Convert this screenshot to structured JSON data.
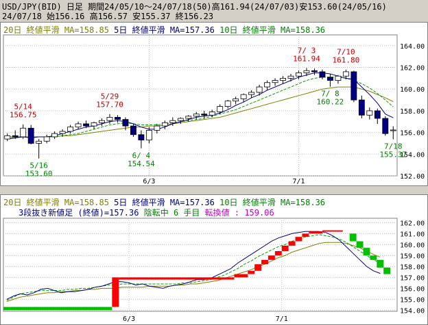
{
  "header": {
    "line1": "USD/JPY(BID) 日足 期間24/05/10～24/07/18(50)高161.94(24/07/03)安153.60(24/05/16)",
    "line2": "24/07/18     始156.16 高156.57 安155.37 終156.23"
  },
  "legend": {
    "ma20": "20日 終値平滑 MA=158.85",
    "ma5": "5日 終値平滑 MA=157.36",
    "ma10": "10日 終値平滑 MA=158.36"
  },
  "renko_info": {
    "label": "3段抜き新値足 (終値)=157.36",
    "status": "陰転中",
    "count": "6 手目",
    "reversal": "転換値 : 159.06"
  },
  "colors": {
    "up": "#ffffff",
    "down": "#000080",
    "ma20": "#808000",
    "ma5": "#000080",
    "ma10": "#00a000",
    "high_label": "#c00000",
    "low_label": "#008000",
    "renko_up": "#ff0000",
    "renko_down": "#00c000"
  },
  "chart_data": [
    {
      "type": "candlestick",
      "x_ticks": [
        "6/3",
        "7/1"
      ],
      "yticks": [
        152,
        154,
        156,
        158,
        160,
        162,
        164
      ],
      "ylim": [
        152,
        165
      ],
      "annotations": [
        {
          "text": [
            "5/14",
            "156.75"
          ],
          "i": 2,
          "price": 156.75,
          "kind": "high"
        },
        {
          "text": [
            "5/16",
            "153.60"
          ],
          "i": 4,
          "price": 153.6,
          "kind": "low"
        },
        {
          "text": [
            "5/29",
            "157.70"
          ],
          "i": 13,
          "price": 157.7,
          "kind": "high"
        },
        {
          "text": [
            "6/ 4",
            "154.54"
          ],
          "i": 17,
          "price": 154.54,
          "kind": "low"
        },
        {
          "text": [
            "7/ 3",
            "161.94"
          ],
          "i": 38,
          "price": 161.94,
          "kind": "high"
        },
        {
          "text": [
            "7/10",
            "161.80"
          ],
          "i": 43,
          "price": 161.8,
          "kind": "high"
        },
        {
          "text": [
            "7/ 8",
            "160.22"
          ],
          "i": 41,
          "price": 160.22,
          "kind": "low"
        },
        {
          "text": [
            "7/18",
            "155.37"
          ],
          "i": 49,
          "price": 155.37,
          "kind": "low"
        }
      ],
      "candles": [
        [
          155.4,
          155.9,
          155.2,
          155.7
        ],
        [
          155.7,
          156.2,
          155.4,
          155.6
        ],
        [
          155.6,
          156.75,
          155.4,
          156.4
        ],
        [
          156.4,
          156.7,
          154.9,
          155.0
        ],
        [
          155.0,
          155.4,
          153.6,
          155.2
        ],
        [
          155.2,
          155.8,
          155.0,
          155.6
        ],
        [
          155.6,
          156.1,
          155.4,
          155.9
        ],
        [
          155.9,
          156.3,
          155.6,
          156.1
        ],
        [
          156.1,
          156.7,
          155.9,
          156.5
        ],
        [
          156.5,
          157.0,
          156.3,
          156.8
        ],
        [
          156.8,
          157.1,
          156.4,
          156.6
        ],
        [
          156.6,
          157.0,
          156.3,
          156.9
        ],
        [
          156.9,
          157.3,
          156.6,
          157.1
        ],
        [
          157.1,
          157.7,
          156.8,
          157.4
        ],
        [
          157.4,
          157.6,
          156.9,
          157.2
        ],
        [
          157.2,
          157.4,
          156.2,
          156.6
        ],
        [
          156.6,
          156.8,
          155.6,
          155.8
        ],
        [
          155.8,
          156.2,
          154.54,
          155.3
        ],
        [
          155.3,
          156.5,
          155.0,
          156.2
        ],
        [
          156.2,
          156.8,
          155.9,
          156.6
        ],
        [
          156.6,
          157.1,
          156.3,
          156.9
        ],
        [
          156.9,
          157.4,
          156.6,
          157.1
        ],
        [
          157.1,
          157.4,
          156.8,
          157.3
        ],
        [
          157.3,
          157.6,
          157.0,
          157.5
        ],
        [
          157.5,
          157.9,
          157.2,
          157.7
        ],
        [
          157.7,
          158.0,
          157.3,
          157.6
        ],
        [
          157.6,
          158.1,
          157.4,
          157.9
        ],
        [
          157.9,
          158.6,
          157.7,
          158.4
        ],
        [
          158.4,
          159.0,
          158.2,
          158.9
        ],
        [
          158.9,
          159.3,
          158.6,
          159.1
        ],
        [
          159.1,
          159.6,
          158.8,
          159.5
        ],
        [
          159.5,
          159.9,
          159.2,
          159.7
        ],
        [
          159.7,
          160.4,
          159.4,
          160.2
        ],
        [
          160.2,
          160.8,
          159.9,
          160.6
        ],
        [
          160.6,
          161.0,
          160.3,
          160.8
        ],
        [
          160.8,
          161.2,
          160.5,
          161.0
        ],
        [
          161.0,
          161.4,
          160.7,
          161.2
        ],
        [
          161.2,
          161.7,
          160.9,
          161.5
        ],
        [
          161.5,
          161.94,
          161.2,
          161.7
        ],
        [
          161.7,
          161.9,
          161.3,
          161.6
        ],
        [
          161.6,
          161.8,
          160.9,
          161.1
        ],
        [
          161.1,
          161.4,
          160.22,
          160.8
        ],
        [
          160.8,
          161.3,
          160.5,
          161.2
        ],
        [
          161.2,
          161.8,
          160.9,
          161.6
        ],
        [
          161.6,
          161.7,
          158.8,
          159.0
        ],
        [
          159.0,
          159.4,
          157.3,
          157.6
        ],
        [
          157.6,
          158.3,
          157.2,
          158.0
        ],
        [
          158.0,
          158.2,
          156.8,
          157.3
        ],
        [
          157.3,
          157.5,
          155.7,
          155.9
        ],
        [
          156.16,
          156.57,
          155.37,
          156.23
        ]
      ],
      "ma5": [
        155.4,
        155.5,
        155.6,
        155.5,
        155.6,
        155.6,
        155.7,
        155.9,
        156.1,
        156.3,
        156.5,
        156.6,
        156.8,
        157.0,
        157.1,
        157.0,
        156.8,
        156.5,
        156.3,
        156.3,
        156.5,
        156.8,
        157.0,
        157.2,
        157.4,
        157.5,
        157.6,
        157.8,
        158.1,
        158.5,
        158.8,
        159.2,
        159.5,
        159.9,
        160.2,
        160.5,
        160.8,
        161.1,
        161.3,
        161.5,
        161.5,
        161.4,
        161.2,
        161.0,
        160.9,
        160.2,
        159.5,
        158.7,
        157.7,
        157.36
      ],
      "ma10": [
        155.5,
        155.5,
        155.6,
        155.6,
        155.6,
        155.6,
        155.6,
        155.7,
        155.8,
        155.9,
        156.1,
        156.3,
        156.5,
        156.7,
        156.8,
        156.9,
        156.8,
        156.7,
        156.7,
        156.7,
        156.8,
        156.9,
        157.0,
        157.1,
        157.2,
        157.3,
        157.5,
        157.7,
        157.9,
        158.1,
        158.4,
        158.7,
        159.0,
        159.3,
        159.6,
        159.9,
        160.2,
        160.5,
        160.8,
        161.0,
        161.1,
        161.1,
        161.1,
        161.0,
        160.8,
        160.5,
        160.1,
        159.6,
        159.0,
        158.36
      ],
      "ma20": [
        155.6,
        155.6,
        155.6,
        155.6,
        155.6,
        155.6,
        155.6,
        155.7,
        155.7,
        155.8,
        155.9,
        156.0,
        156.1,
        156.2,
        156.3,
        156.4,
        156.5,
        156.5,
        156.6,
        156.6,
        156.7,
        156.8,
        156.9,
        157.0,
        157.1,
        157.2,
        157.3,
        157.4,
        157.6,
        157.8,
        158.0,
        158.2,
        158.4,
        158.6,
        158.8,
        159.0,
        159.2,
        159.4,
        159.6,
        159.8,
        160.0,
        160.1,
        160.2,
        160.2,
        160.2,
        160.0,
        159.8,
        159.5,
        159.2,
        158.85
      ]
    },
    {
      "type": "renko",
      "x_ticks": [
        "6/3",
        "7/1"
      ],
      "yticks": [
        154,
        155,
        156,
        157,
        158,
        159,
        160,
        161,
        162
      ],
      "ylim": [
        153.9,
        162.4
      ],
      "bricks": [
        {
          "x0": 0,
          "x1": 16,
          "lo": 154.0,
          "hi": 154.3,
          "up": false
        },
        {
          "x0": 16,
          "x1": 17,
          "lo": 154.3,
          "hi": 157.0,
          "up": true
        },
        {
          "x0": 17,
          "x1": 34,
          "lo": 156.8,
          "hi": 157.0,
          "up": true
        },
        {
          "x0": 34,
          "x1": 36,
          "lo": 157.0,
          "hi": 157.3,
          "up": true
        },
        {
          "x0": 36,
          "x1": 37,
          "lo": 157.3,
          "hi": 157.6,
          "up": true
        },
        {
          "x0": 37,
          "x1": 38,
          "lo": 157.6,
          "hi": 158.2,
          "up": true
        },
        {
          "x0": 38,
          "x1": 39,
          "lo": 158.2,
          "hi": 158.6,
          "up": true
        },
        {
          "x0": 39,
          "x1": 40,
          "lo": 158.6,
          "hi": 159.0,
          "up": true
        },
        {
          "x0": 40,
          "x1": 41,
          "lo": 159.0,
          "hi": 159.4,
          "up": true
        },
        {
          "x0": 41,
          "x1": 42,
          "lo": 159.4,
          "hi": 159.9,
          "up": true
        },
        {
          "x0": 42,
          "x1": 43,
          "lo": 159.9,
          "hi": 160.3,
          "up": true
        },
        {
          "x0": 43,
          "x1": 44,
          "lo": 160.3,
          "hi": 160.7,
          "up": true
        },
        {
          "x0": 44,
          "x1": 45,
          "lo": 160.7,
          "hi": 161.0,
          "up": true
        },
        {
          "x0": 45,
          "x1": 47,
          "lo": 161.0,
          "hi": 161.2,
          "up": true
        },
        {
          "x0": 47,
          "x1": 50,
          "lo": 161.2,
          "hi": 161.3,
          "up": true
        },
        {
          "x0": 51,
          "x1": 52,
          "lo": 160.3,
          "hi": 161.0,
          "up": false
        },
        {
          "x0": 52,
          "x1": 53,
          "lo": 159.7,
          "hi": 160.3,
          "up": false
        },
        {
          "x0": 53,
          "x1": 54,
          "lo": 159.0,
          "hi": 159.7,
          "up": false
        },
        {
          "x0": 54,
          "x1": 55,
          "lo": 158.6,
          "hi": 159.0,
          "up": false
        },
        {
          "x0": 55,
          "x1": 56,
          "lo": 157.9,
          "hi": 158.6,
          "up": false
        },
        {
          "x0": 56,
          "x1": 57,
          "lo": 157.3,
          "hi": 157.9,
          "up": false
        }
      ],
      "ma5": [
        155.0,
        155.3,
        155.5,
        155.4,
        155.6,
        155.9,
        156.0,
        155.8,
        155.6,
        155.7,
        155.7,
        155.8,
        155.9,
        156.1,
        156.2,
        156.4,
        156.6,
        156.6,
        156.5,
        156.3,
        156.4,
        156.2,
        156.1,
        156.0,
        156.2,
        156.3,
        156.4,
        156.6,
        156.8,
        156.8,
        156.9,
        157.2,
        157.5,
        157.8,
        158.3,
        158.7,
        159.1,
        159.5,
        159.9,
        160.3,
        160.6,
        160.8,
        161.0,
        161.1,
        161.2,
        161.2,
        161.2,
        161.1,
        160.8,
        160.4,
        159.8,
        159.2,
        158.6,
        158.0,
        157.6,
        157.36
      ],
      "ma10": [
        154.9,
        155.2,
        155.5,
        155.6,
        155.7,
        155.8,
        155.8,
        155.8,
        155.8,
        155.9,
        155.9,
        156.0,
        156.0,
        156.1,
        156.2,
        156.3,
        156.3,
        156.4,
        156.4,
        156.4,
        156.4,
        156.4,
        156.4,
        156.4,
        156.4,
        156.4,
        156.5,
        156.5,
        156.6,
        156.7,
        156.8,
        157.0,
        157.2,
        157.5,
        157.8,
        158.2,
        158.5,
        158.9,
        159.2,
        159.5,
        159.8,
        160.0,
        160.3,
        160.5,
        160.7,
        160.8,
        160.9,
        160.8,
        160.7,
        160.5,
        160.2,
        159.8,
        159.4,
        159.0,
        158.6,
        158.36
      ],
      "ma20": [
        154.8,
        155.0,
        155.2,
        155.3,
        155.4,
        155.5,
        155.6,
        155.6,
        155.7,
        155.7,
        155.8,
        155.8,
        155.9,
        155.9,
        156.0,
        156.0,
        156.0,
        156.1,
        156.1,
        156.1,
        156.1,
        156.2,
        156.2,
        156.2,
        156.2,
        156.3,
        156.3,
        156.4,
        156.4,
        156.5,
        156.6,
        156.7,
        156.9,
        157.1,
        157.3,
        157.5,
        157.7,
        158.0,
        158.2,
        158.5,
        158.8,
        159.0,
        159.3,
        159.5,
        159.7,
        159.9,
        160.1,
        160.2,
        160.2,
        160.2,
        160.1,
        159.9,
        159.7,
        159.4,
        159.1,
        158.85
      ]
    }
  ]
}
